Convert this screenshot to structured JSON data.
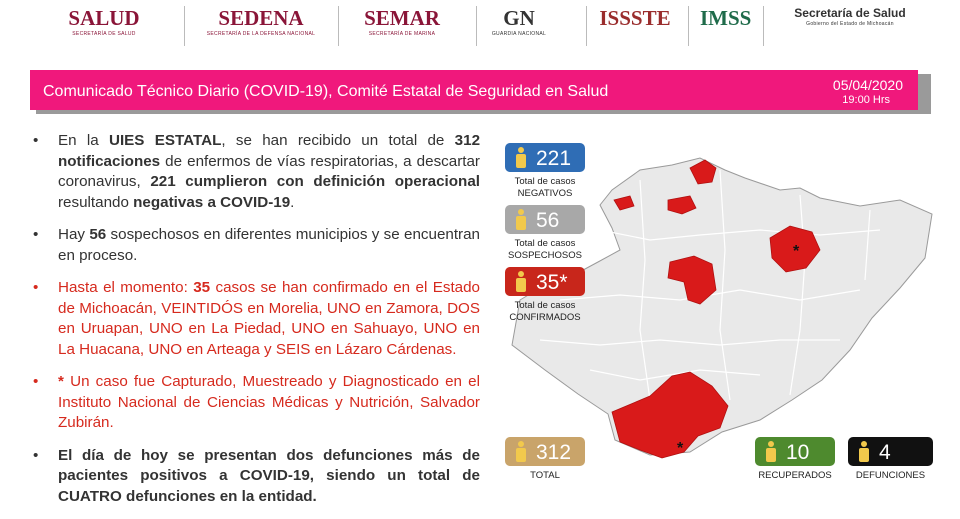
{
  "header": {
    "logos": [
      {
        "name": "SALUD",
        "sub": "SECRETARÍA DE SALUD",
        "color": "#8a1538"
      },
      {
        "name": "SEDENA",
        "sub": "SECRETARÍA DE LA DEFENSA NACIONAL",
        "color": "#8a1538"
      },
      {
        "name": "SEMAR",
        "sub": "SECRETARÍA DE MARINA",
        "color": "#8a1538"
      },
      {
        "name": "GN",
        "sub": "GUARDIA NACIONAL",
        "color": "#333333"
      },
      {
        "name": "ISSSTE",
        "sub": "",
        "color": "#9a2d2d"
      },
      {
        "name": "IMSS",
        "sub": "",
        "color": "#1f6b4a"
      },
      {
        "name": "Secretaría de Salud",
        "sub": "Gobierno del Estado de Michoacán",
        "color": "#333333"
      }
    ]
  },
  "banner": {
    "title": "Comunicado Técnico Diario (COVID-19), Comité Estatal de Seguridad en Salud",
    "date": "05/04/2020",
    "time": "19:00 Hrs"
  },
  "bullets": [
    {
      "color": "#333333",
      "segments": [
        {
          "text": "En la ",
          "bold": false
        },
        {
          "text": "UIES ESTATAL",
          "bold": true
        },
        {
          "text": ", se han recibido un total de ",
          "bold": false
        },
        {
          "text": "312 notificaciones",
          "bold": true
        },
        {
          "text": " de enfermos de vías respiratorias, a descartar coronavirus, ",
          "bold": false
        },
        {
          "text": "221 cumplieron con definición operacional",
          "bold": true
        },
        {
          "text": " resultando ",
          "bold": false
        },
        {
          "text": "negativas a COVID-19",
          "bold": true
        },
        {
          "text": ".",
          "bold": false
        }
      ]
    },
    {
      "color": "#333333",
      "segments": [
        {
          "text": "Hay ",
          "bold": false
        },
        {
          "text": "56",
          "bold": true
        },
        {
          "text": " sospechosos en diferentes municipios y se encuentran en proceso.",
          "bold": false
        }
      ]
    },
    {
      "color": "#d62a1e",
      "segments": [
        {
          "text": "Hasta el momento: ",
          "bold": false
        },
        {
          "text": "35",
          "bold": true
        },
        {
          "text": " casos se han confirmado en el Estado de Michoacán, VEINTIDÓS en Morelia, UNO en Zamora, DOS en Uruapan, UNO en La Piedad, UNO en Sahuayo, UNO en La Huacana, UNO en Arteaga y SEIS en Lázaro Cárdenas.",
          "bold": false
        }
      ]
    },
    {
      "color": "#d62a1e",
      "segments": [
        {
          "text": "*",
          "bold": true
        },
        {
          "text": " Un caso fue Capturado, Muestreado y Diagnosticado en el Instituto Nacional de Ciencias Médicas y Nutrición, Salvador Zubirán.",
          "bold": false
        }
      ]
    },
    {
      "color": "#333333",
      "segments": [
        {
          "text": "El día de hoy se presentan dos defunciones más de pacientes positivos a COVID-19, siendo un total de CUATRO defunciones en la entidad.",
          "bold": true
        }
      ]
    }
  ],
  "stats": [
    {
      "value": 221,
      "label": [
        "Total de casos",
        "NEGATIVOS"
      ],
      "color": "#2f6db5"
    },
    {
      "value": 56,
      "label": [
        "Total de casos",
        "SOSPECHOSOS"
      ],
      "color": "#a8a8a8"
    },
    {
      "value": "35*",
      "label": [
        "Total de casos",
        "CONFIRMADOS"
      ],
      "color": "#c8261b"
    },
    {
      "value": 312,
      "label": [
        "TOTAL"
      ],
      "color": "#c9a46a"
    },
    {
      "value": 10,
      "label": [
        "RECUPERADOS"
      ],
      "color": "#4e8a2e"
    },
    {
      "value": 4,
      "label": [
        "DEFUNCIONES"
      ],
      "color": "#111111"
    }
  ],
  "map": {
    "markers": [
      "*",
      "*"
    ]
  }
}
